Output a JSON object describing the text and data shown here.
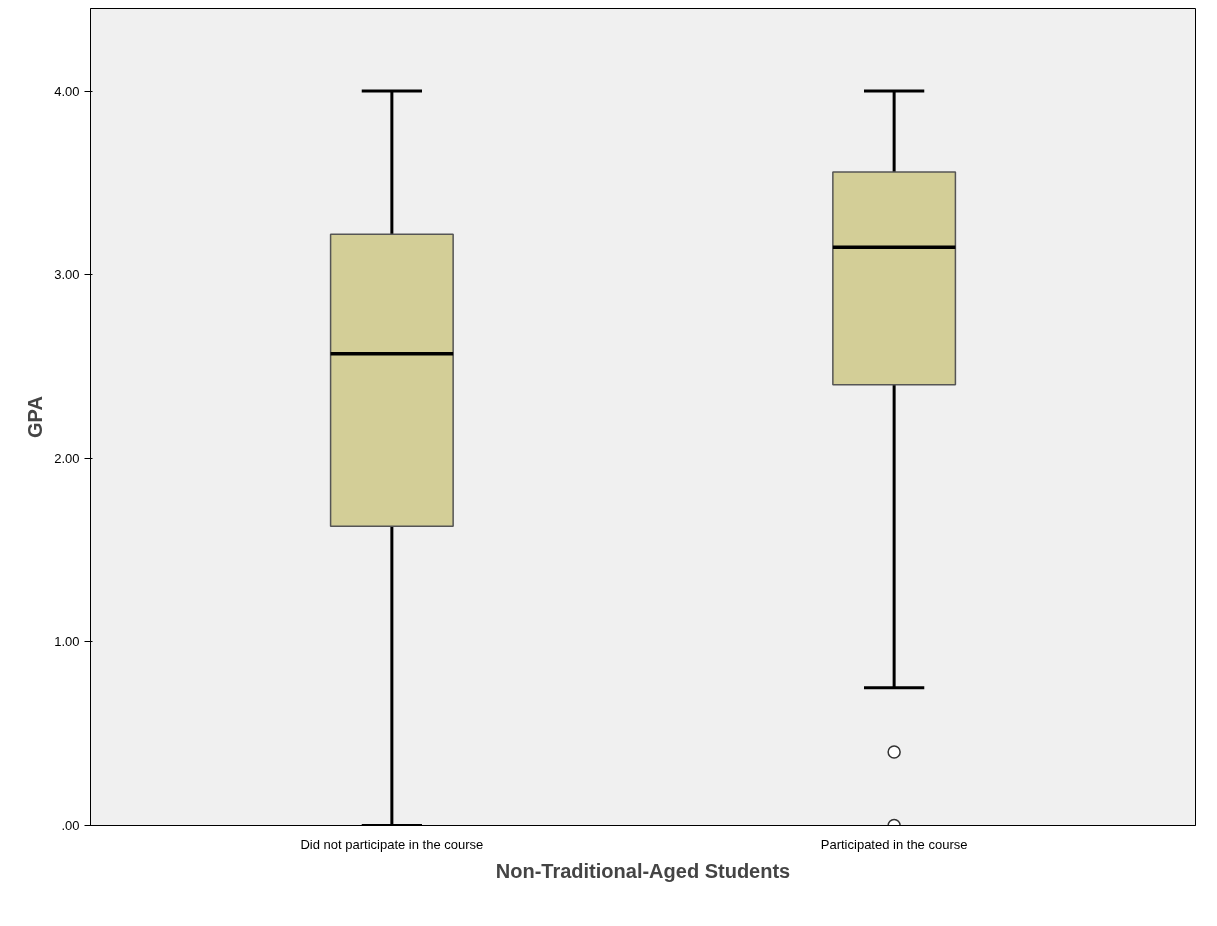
{
  "chart_data": {
    "type": "box",
    "xlabel": "Non-Traditional-Aged Students",
    "ylabel": "GPA",
    "categories": [
      "Did not participate in the course",
      "Participated in the course"
    ],
    "boxes": [
      {
        "low": 0,
        "q1": 1.63,
        "median": 2.57,
        "q3": 3.22,
        "high": 4.0
      },
      {
        "low": 0.75,
        "q1": 2.4,
        "median": 3.15,
        "q3": 3.56,
        "high": 4.0,
        "outliers": [
          0.4,
          0.0
        ]
      }
    ],
    "color": "#d3ce97",
    "ylim": [
      0,
      4.45
    ],
    "yticks": [
      {
        "value": 0,
        "label": ".00"
      },
      {
        "value": 1,
        "label": "1.00"
      },
      {
        "value": 2,
        "label": "2.00"
      },
      {
        "value": 3,
        "label": "3.00"
      },
      {
        "value": 4,
        "label": "4.00"
      }
    ],
    "grid": false
  }
}
